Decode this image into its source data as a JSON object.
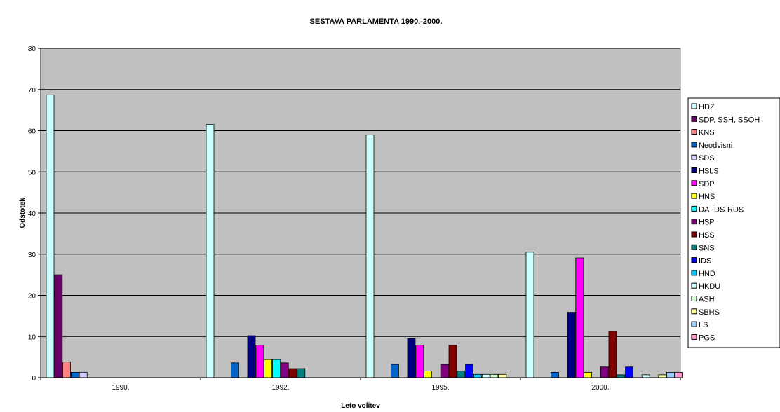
{
  "chart_data": {
    "type": "bar",
    "title": "SESTAVA PARLAMENTA 1990.-2000.",
    "xlabel": "Leto volitev",
    "ylabel": "Odstotek",
    "ylim": [
      0,
      80
    ],
    "yticks": [
      0,
      10,
      20,
      30,
      40,
      50,
      60,
      70,
      80
    ],
    "grid": true,
    "legend": "right",
    "plot_background": "#c0c0c0",
    "categories": [
      "1990.",
      "1992.",
      "1995.",
      "2000."
    ],
    "series": [
      {
        "name": "HDZ",
        "color": "#ccffff",
        "values": [
          68.7,
          61.5,
          59.0,
          30.5
        ]
      },
      {
        "name": "SDP, SSH, SSOH",
        "color": "#660066",
        "values": [
          25.0,
          null,
          null,
          null
        ]
      },
      {
        "name": "KNS",
        "color": "#ff8080",
        "values": [
          3.8,
          null,
          null,
          null
        ]
      },
      {
        "name": "Neodvisni",
        "color": "#0066cc",
        "values": [
          1.3,
          3.6,
          3.2,
          1.3
        ]
      },
      {
        "name": "SDS",
        "color": "#ccccff",
        "values": [
          1.3,
          null,
          null,
          null
        ]
      },
      {
        "name": "HSLS",
        "color": "#000080",
        "values": [
          null,
          10.2,
          9.5,
          15.9
        ]
      },
      {
        "name": "SDP",
        "color": "#ff00ff",
        "values": [
          null,
          7.9,
          7.9,
          29.1
        ]
      },
      {
        "name": "HNS",
        "color": "#ffff00",
        "values": [
          null,
          4.4,
          1.6,
          1.3
        ]
      },
      {
        "name": "DA-IDS-RDS",
        "color": "#00ffff",
        "values": [
          null,
          4.4,
          null,
          null
        ]
      },
      {
        "name": "HSP",
        "color": "#800080",
        "values": [
          null,
          3.6,
          3.2,
          2.6
        ]
      },
      {
        "name": "HSS",
        "color": "#800000",
        "values": [
          null,
          2.2,
          7.9,
          11.3
        ]
      },
      {
        "name": "SNS",
        "color": "#008080",
        "values": [
          null,
          2.2,
          1.6,
          0.7
        ]
      },
      {
        "name": "IDS",
        "color": "#0000ff",
        "values": [
          null,
          null,
          3.2,
          2.6
        ]
      },
      {
        "name": "HND",
        "color": "#00ccff",
        "values": [
          null,
          null,
          0.8,
          null
        ]
      },
      {
        "name": "HKDU",
        "color": "#ccffff",
        "values": [
          null,
          null,
          0.8,
          0.7
        ]
      },
      {
        "name": "ASH",
        "color": "#ccffcc",
        "values": [
          null,
          null,
          0.8,
          null
        ]
      },
      {
        "name": "SBHS",
        "color": "#ffff99",
        "values": [
          null,
          null,
          0.8,
          0.7
        ]
      },
      {
        "name": "LS",
        "color": "#99ccff",
        "values": [
          null,
          null,
          null,
          1.3
        ]
      },
      {
        "name": "PGS",
        "color": "#ff99cc",
        "values": [
          null,
          null,
          null,
          1.3
        ]
      }
    ]
  }
}
